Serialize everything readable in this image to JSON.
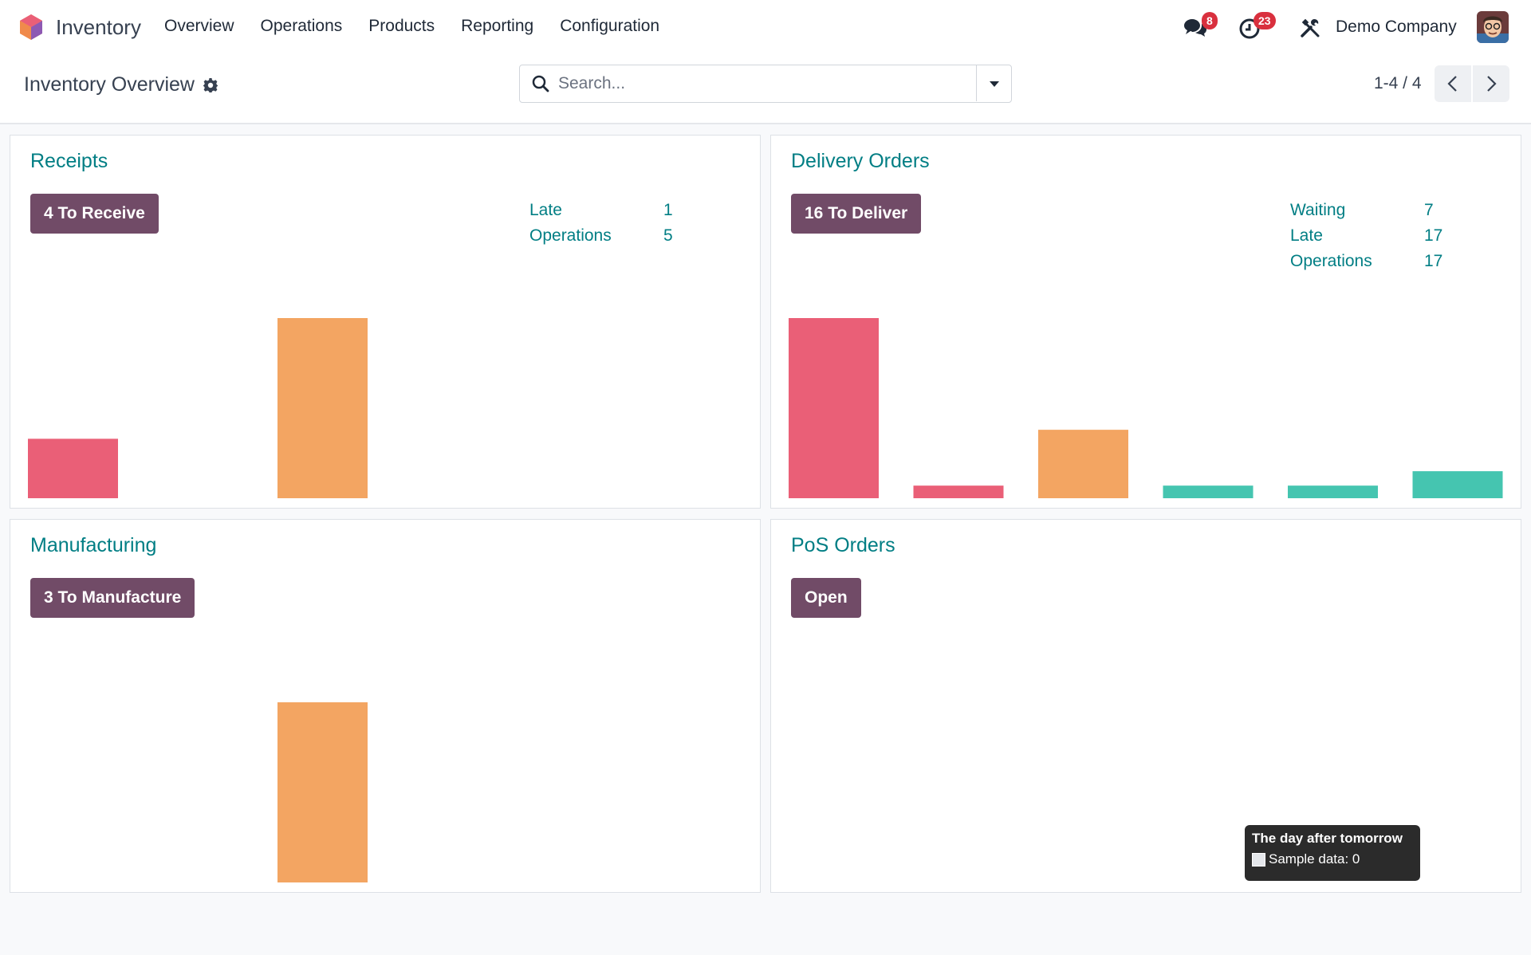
{
  "app": {
    "name": "Inventory"
  },
  "nav": {
    "items": [
      "Overview",
      "Operations",
      "Products",
      "Reporting",
      "Configuration"
    ],
    "messages_count": "8",
    "activities_count": "23",
    "company": "Demo Company"
  },
  "control_panel": {
    "title": "Inventory Overview",
    "search_placeholder": "Search...",
    "pager": "1-4 / 4"
  },
  "colors": {
    "accent": "#017e84",
    "primary_button": "#714b67",
    "late": "#ea5f77",
    "future": "#f3a562",
    "ontime": "#45c5b0"
  },
  "cards": {
    "receipts": {
      "title": "Receipts",
      "button": "4 To Receive",
      "stats": [
        {
          "label": "Late",
          "value": "1"
        },
        {
          "label": "Operations",
          "value": "5"
        }
      ]
    },
    "delivery": {
      "title": "Delivery Orders",
      "button": "16 To Deliver",
      "stats": [
        {
          "label": "Waiting",
          "value": "7"
        },
        {
          "label": "Late",
          "value": "17"
        },
        {
          "label": "Operations",
          "value": "17"
        }
      ]
    },
    "manufacturing": {
      "title": "Manufacturing",
      "button": "3 To Manufacture",
      "stats": []
    },
    "pos": {
      "title": "PoS Orders",
      "button": "Open",
      "stats": []
    }
  },
  "tooltip": {
    "title": "The day after tomorrow",
    "label": "Sample data: 0"
  },
  "chart_data": [
    {
      "type": "bar",
      "chart": "receipts",
      "values": [
        0.33,
        0,
        1,
        0,
        0,
        0
      ],
      "colors": [
        "late",
        "late",
        "future",
        "ontime",
        "ontime",
        "ontime"
      ]
    },
    {
      "type": "bar",
      "chart": "delivery",
      "values": [
        1,
        0.07,
        0.38,
        0.07,
        0.07,
        0.15
      ],
      "colors": [
        "late",
        "late",
        "future",
        "ontime",
        "ontime",
        "ontime"
      ]
    },
    {
      "type": "bar",
      "chart": "manufacturing",
      "values": [
        0,
        0,
        1,
        0,
        0,
        0
      ],
      "colors": [
        "late",
        "late",
        "future",
        "ontime",
        "ontime",
        "ontime"
      ]
    },
    {
      "type": "bar",
      "chart": "pos",
      "values": [
        0,
        0,
        0,
        0,
        0,
        0
      ],
      "colors": [
        "late",
        "late",
        "future",
        "ontime",
        "ontime",
        "ontime"
      ]
    }
  ]
}
